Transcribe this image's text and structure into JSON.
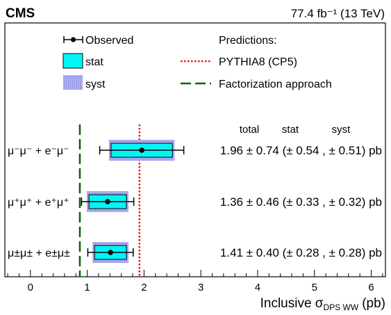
{
  "header": {
    "experiment": "CMS",
    "luminosity": "77.4 fb⁻¹ (13 TeV)"
  },
  "legend": {
    "observed": "Observed",
    "stat": "stat",
    "syst": "syst",
    "predictions_title": "Predictions:",
    "pythia": "PYTHIA8 (CP5)",
    "factorization": "Factorization approach"
  },
  "column_headers": {
    "total": "total",
    "stat": "stat",
    "syst": "syst"
  },
  "colors": {
    "stat_fill": "#00f5f5",
    "syst_fill": "#a5a8ee",
    "pythia_line": "#ee1111",
    "factorization_line": "#006400"
  },
  "chart_data": {
    "type": "scatter",
    "orientation": "horizontal",
    "xlabel_main": "Inclusive σ",
    "xlabel_sub": "DPS WW",
    "xlabel_unit": "(pb)",
    "xlim": [
      -0.45,
      6.25
    ],
    "xticks": [
      0,
      1,
      2,
      3,
      4,
      5,
      6
    ],
    "pythia_value": 1.92,
    "factorization_value": 0.87,
    "channels": [
      {
        "label": "μ⁻μ⁻ + e⁻μ⁻",
        "value": 1.96,
        "total": 0.74,
        "stat": 0.54,
        "syst": 0.51,
        "result_text": "1.96 ± 0.74 (± 0.54 , ± 0.51) pb"
      },
      {
        "label": "μ⁺μ⁺ + e⁺μ⁺",
        "value": 1.36,
        "total": 0.46,
        "stat": 0.33,
        "syst": 0.32,
        "result_text": "1.36 ± 0.46 (± 0.33 , ± 0.32) pb"
      },
      {
        "label": "μ±μ± + e±μ±",
        "value": 1.41,
        "total": 0.4,
        "stat": 0.28,
        "syst": 0.28,
        "result_text": "1.41 ± 0.40 (± 0.28 , ± 0.28) pb"
      }
    ]
  }
}
